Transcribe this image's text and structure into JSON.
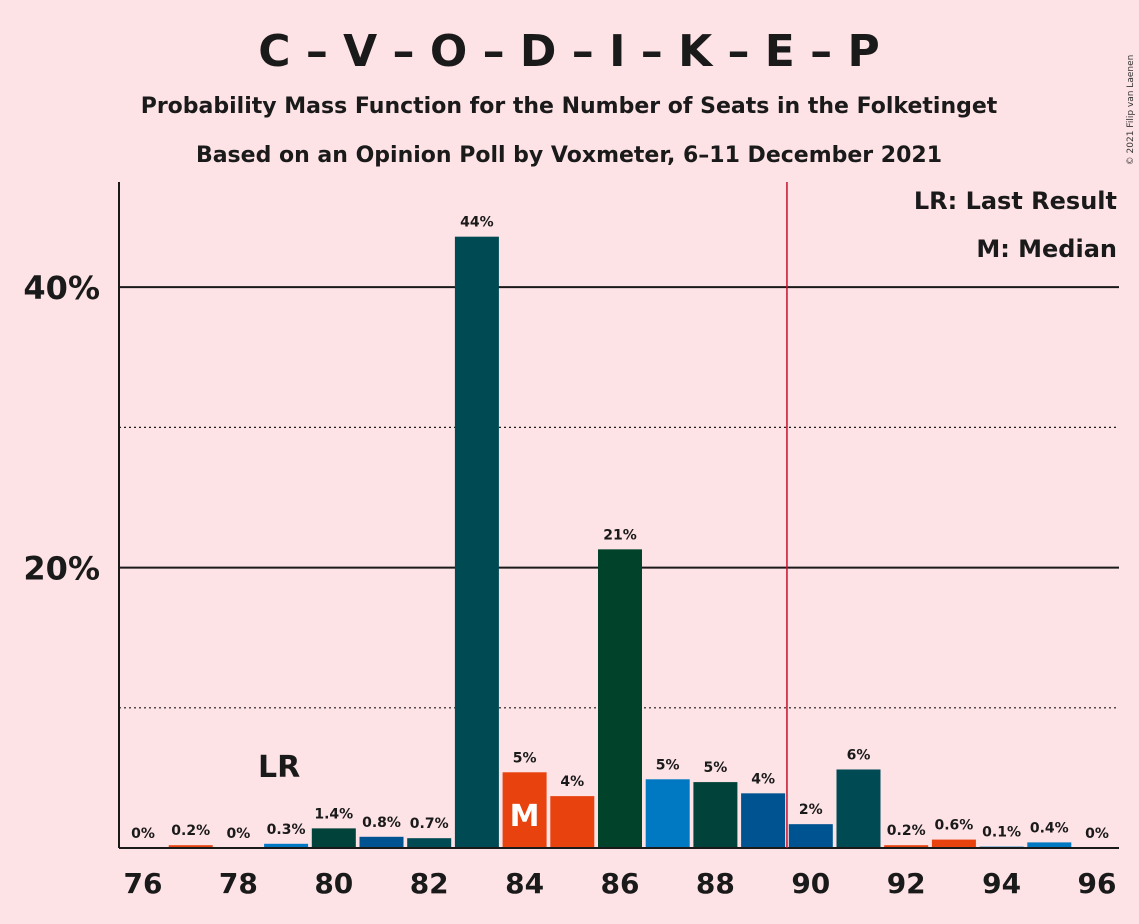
{
  "chart_data": {
    "type": "bar",
    "title": "C – V – O – D – I – K – E – P",
    "subtitle": "Probability Mass Function for the Number of Seats in the Folketinget",
    "subtitle2": "Based on an Opinion Poll by Voxmeter, 6–11 December 2021",
    "copyright": "© 2021 Filip van Laenen",
    "x": [
      76,
      77,
      78,
      79,
      80,
      81,
      82,
      83,
      84,
      85,
      86,
      87,
      88,
      89,
      90,
      91,
      92,
      93,
      94,
      95,
      96
    ],
    "values": [
      0,
      0.2,
      0,
      0.3,
      1.4,
      0.8,
      0.7,
      43.6,
      5.4,
      3.7,
      21.3,
      4.9,
      4.7,
      3.9,
      1.7,
      5.6,
      0.2,
      0.6,
      0.1,
      0.4,
      0
    ],
    "labels": [
      "0%",
      "0.2%",
      "0%",
      "0.3%",
      "1.4%",
      "0.8%",
      "0.7%",
      "44%",
      "5%",
      "4%",
      "21%",
      "5%",
      "5%",
      "4%",
      "2%",
      "6%",
      "0.2%",
      "0.6%",
      "0.1%",
      "0.4%",
      "0%"
    ],
    "colors": [
      "#e8430f",
      "#e8430f",
      "#0079c2",
      "#0079c2",
      "#01423a",
      "#005391",
      "#004a54",
      "#004a54",
      "#e8430f",
      "#e8430f",
      "#00422a",
      "#0079c2",
      "#01423a",
      "#005391",
      "#005391",
      "#004a54",
      "#e8430f",
      "#e8430f",
      "#0079c2",
      "#0079c2",
      "#01423a"
    ],
    "x_ticks": [
      "76",
      "78",
      "80",
      "82",
      "84",
      "86",
      "88",
      "90",
      "92",
      "94",
      "96"
    ],
    "y_ticks": [
      {
        "value": 20,
        "label": "20%"
      },
      {
        "value": 40,
        "label": "40%"
      }
    ],
    "ylim": [
      0,
      47.5
    ],
    "majority_seat": 90,
    "last_result": {
      "seat": 79,
      "label": "LR"
    },
    "median": {
      "seat": 84,
      "label": "M"
    },
    "legend": [
      "LR: Last Result",
      "M: Median"
    ],
    "grid": true
  }
}
